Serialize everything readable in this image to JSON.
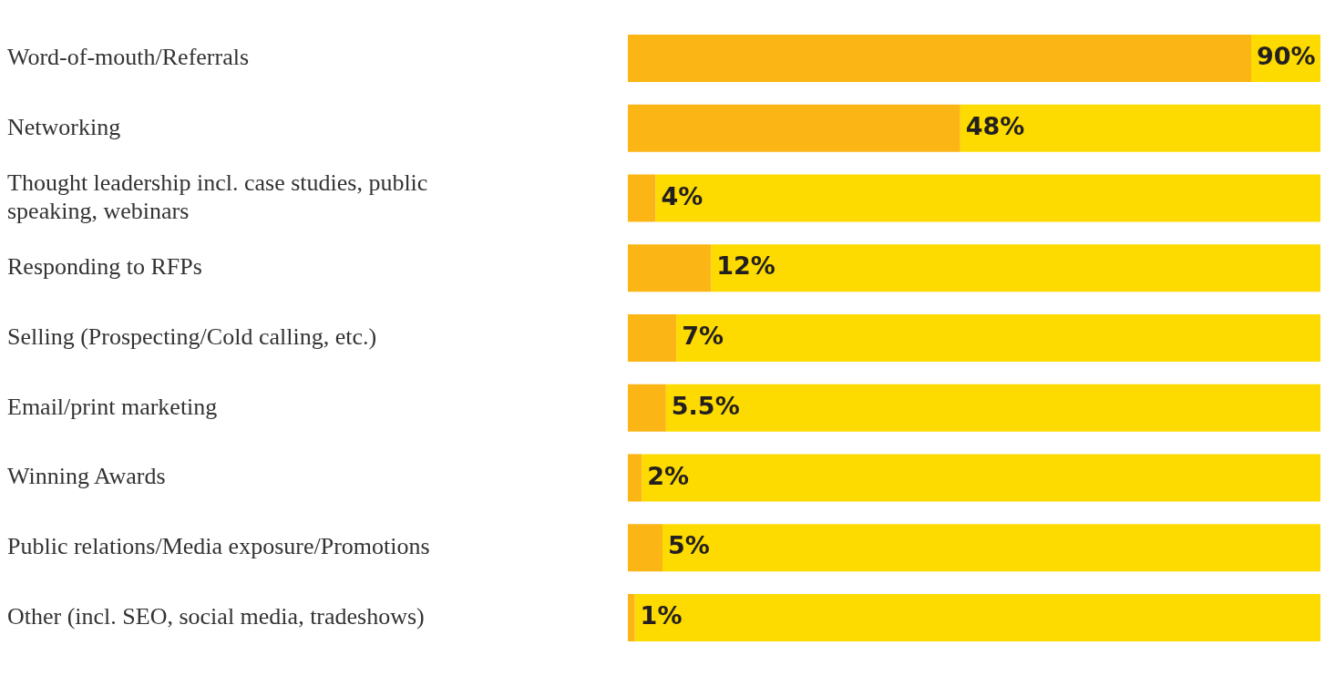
{
  "chart_data": {
    "type": "bar",
    "orientation": "horizontal",
    "stacked": true,
    "categories": [
      "Word-of-mouth/Referrals",
      "Networking",
      "Thought leadership incl. case studies, public speaking, webinars",
      "Responding to RFPs",
      "Selling (Prospecting/Cold calling, etc.)",
      "Email/print marketing",
      "Winning Awards",
      "Public relations/Media exposure/Promotions",
      "Other (incl. SEO, social media, tradeshows)"
    ],
    "series": [
      {
        "color": "#fbb616",
        "values": [
          90,
          48,
          4,
          12,
          7,
          5.5,
          2,
          5,
          1
        ],
        "value_labels": [
          "90%",
          "48%",
          "4%",
          "12%",
          "7%",
          "5.5%",
          "2%",
          "5%",
          "1%"
        ]
      },
      {
        "color": "#fddb00",
        "values": [
          10,
          52,
          96,
          88,
          93,
          94.5,
          98,
          95,
          99
        ]
      }
    ],
    "xlim": [
      0,
      100
    ],
    "tick_labels": "y",
    "grid": false,
    "legend": false
  }
}
